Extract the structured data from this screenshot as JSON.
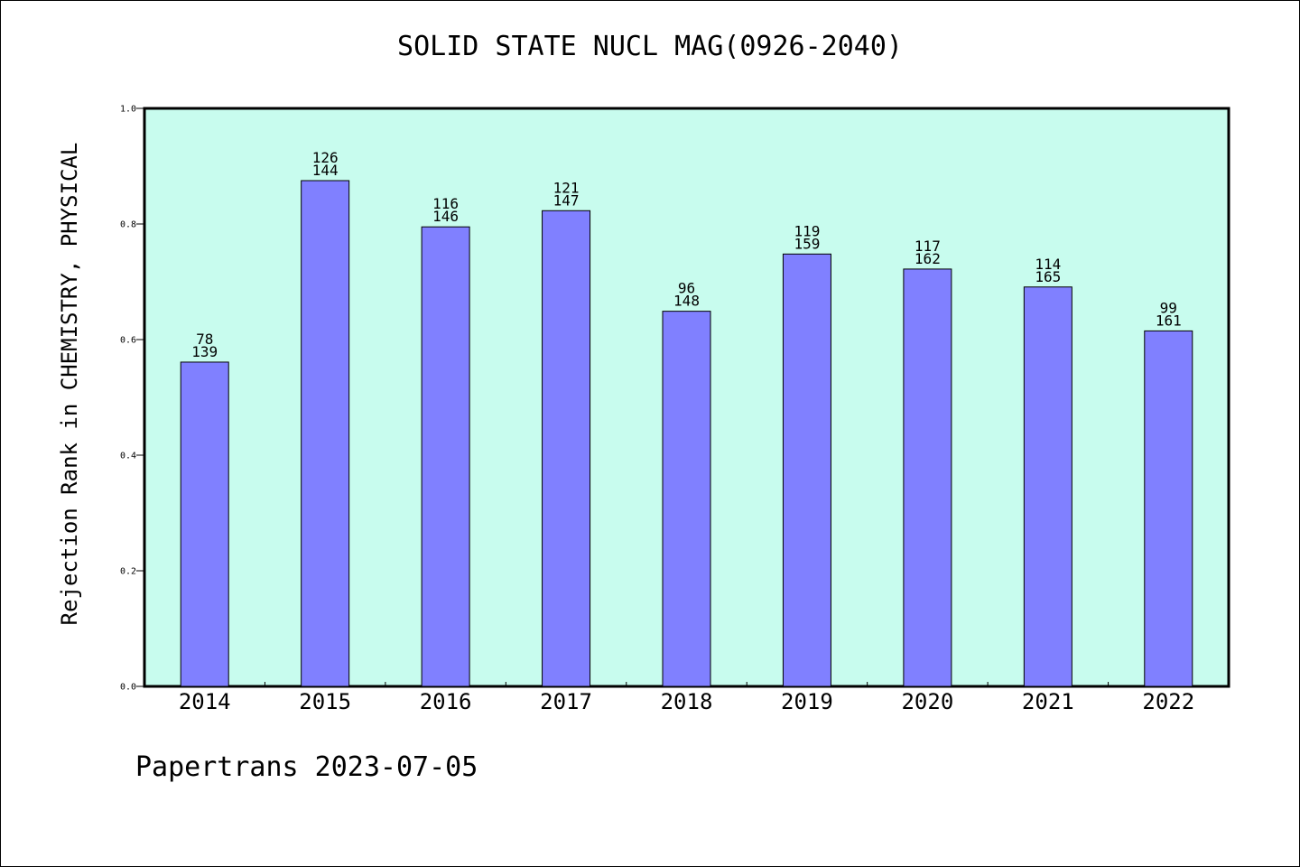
{
  "chart_data": {
    "type": "bar",
    "title": "SOLID STATE NUCL MAG(0926-2040)",
    "ylabel": "Rejection Rank in CHEMISTRY, PHYSICAL",
    "xlabel": "",
    "ylim": [
      0.0,
      1.0
    ],
    "yticks": [
      "0.0",
      "0.2",
      "0.4",
      "0.6",
      "0.8",
      "1.0"
    ],
    "categories": [
      "2014",
      "2015",
      "2016",
      "2017",
      "2018",
      "2019",
      "2020",
      "2021",
      "2022"
    ],
    "values": [
      0.561,
      0.875,
      0.795,
      0.823,
      0.649,
      0.748,
      0.722,
      0.691,
      0.615
    ],
    "rank_labels": [
      "78",
      "126",
      "116",
      "121",
      "96",
      "119",
      "117",
      "114",
      "99"
    ],
    "total_labels": [
      "139",
      "144",
      "146",
      "147",
      "148",
      "159",
      "162",
      "165",
      "161"
    ],
    "colors": {
      "plot_bg": "#c8fcee",
      "bar": "#8080ff",
      "bar_stroke": "#000000"
    },
    "grid": false,
    "legend": "none"
  },
  "footer": "Papertrans 2023-07-05"
}
